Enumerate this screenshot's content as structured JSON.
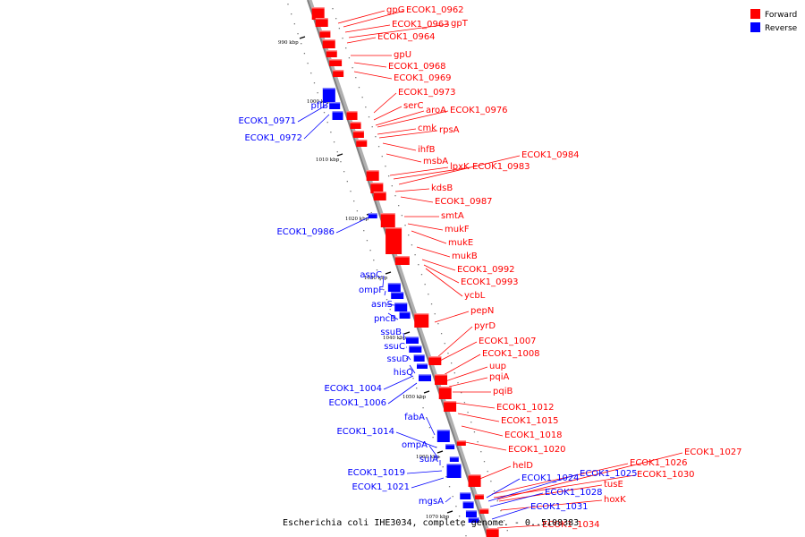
{
  "legend": {
    "forward_label": "Forward",
    "reverse_label": "Reverse",
    "forward_color": "#ff0000",
    "reverse_color": "#0000ff"
  },
  "caption": "Escherichia coli IHE3034, complete genome. - 0..5108383",
  "ticks": [
    "990 kbp",
    "1000 kbp",
    "1010 kbp",
    "1020 kbp",
    "1030 kbp",
    "1040 kbp",
    "1050 kbp",
    "1060 kbp",
    "1070 kbp"
  ],
  "forward_genes": [
    "gpG",
    "ECOK1_0962",
    "ECOK1_0963",
    "gpT",
    "ECOK1_0964",
    "gpU",
    "ECOK1_0968",
    "ECOK1_0969",
    "ECOK1_0973",
    "serC",
    "aroA",
    "ECOK1_0976",
    "cmk",
    "rpsA",
    "ihfB",
    "msbA",
    "lpxK",
    "ECOK1_0983",
    "ECOK1_0984",
    "kdsB",
    "ECOK1_0987",
    "smtA",
    "mukF",
    "mukE",
    "mukB",
    "ECOK1_0992",
    "ECOK1_0993",
    "ycbL",
    "pepN",
    "pyrD",
    "ECOK1_1007",
    "ECOK1_1008",
    "uup",
    "pqiA",
    "pqiB",
    "ECOK1_1012",
    "ECOK1_1015",
    "ECOK1_1018",
    "ECOK1_1020",
    "helD",
    "ECOK1_1026",
    "ECOK1_1030",
    "ECOK1_1027",
    "tusE",
    "hoxK",
    "ECOK1_1034"
  ],
  "reverse_genes": [
    "pflB",
    "ECOK1_0971",
    "ECOK1_0972",
    "ECOK1_0986",
    "aspC",
    "ompF",
    "asnS",
    "pncB",
    "ssuB",
    "ssuC",
    "ssuD",
    "hisQ",
    "ECOK1_1004",
    "ECOK1_1006",
    "fabA",
    "ECOK1_1014",
    "ompA",
    "sulA",
    "ECOK1_1019",
    "ECOK1_1021",
    "mgsA",
    "ECOK1_1024",
    "ECOK1_1025",
    "ECOK1_1028",
    "ECOK1_1031"
  ]
}
